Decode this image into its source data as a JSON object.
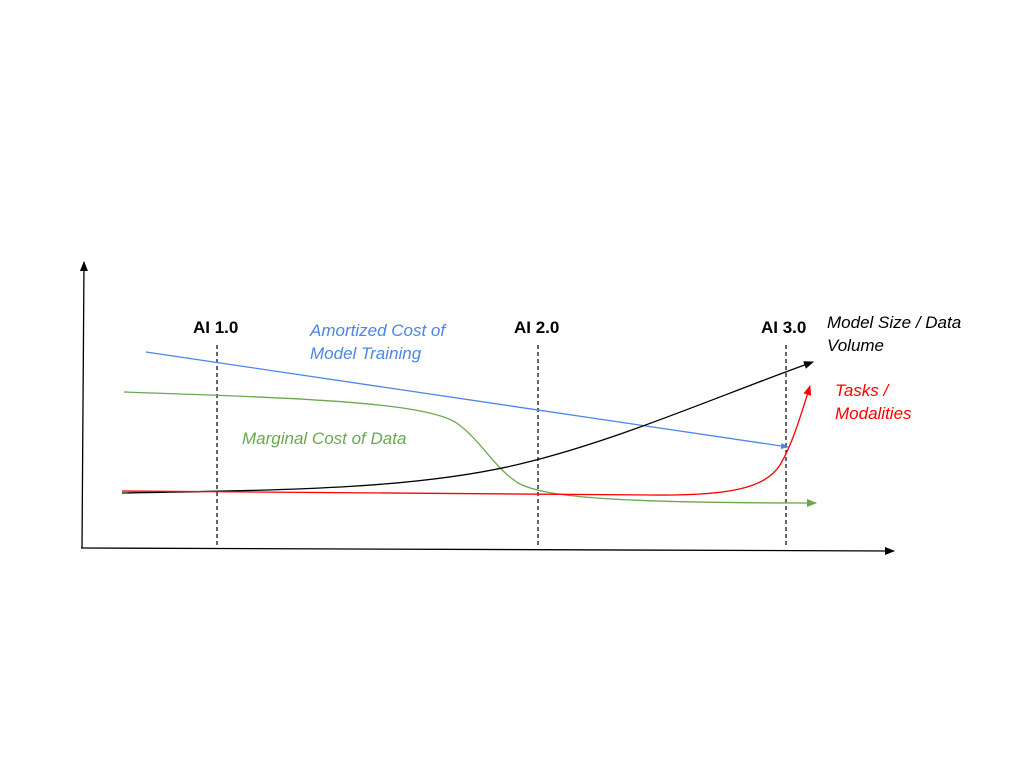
{
  "colors": {
    "axis": "#000000",
    "amortized": "#4a86e8",
    "marginal": "#6aa84f",
    "model_size": "#000000",
    "tasks": "#ff0000",
    "divider": "#000000",
    "background": "#ffffff"
  },
  "eras": [
    {
      "label": "AI 1.0"
    },
    {
      "label": "AI 2.0"
    },
    {
      "label": "AI 3.0"
    }
  ],
  "curves": {
    "amortized": {
      "line1": "Amortized Cost of",
      "line2": "Model Training"
    },
    "marginal": {
      "label": "Marginal Cost of Data"
    },
    "model_size": {
      "line1": "Model Size / Data",
      "line2": "Volume"
    },
    "tasks": {
      "line1": "Tasks /",
      "line2": "Modalities"
    }
  }
}
